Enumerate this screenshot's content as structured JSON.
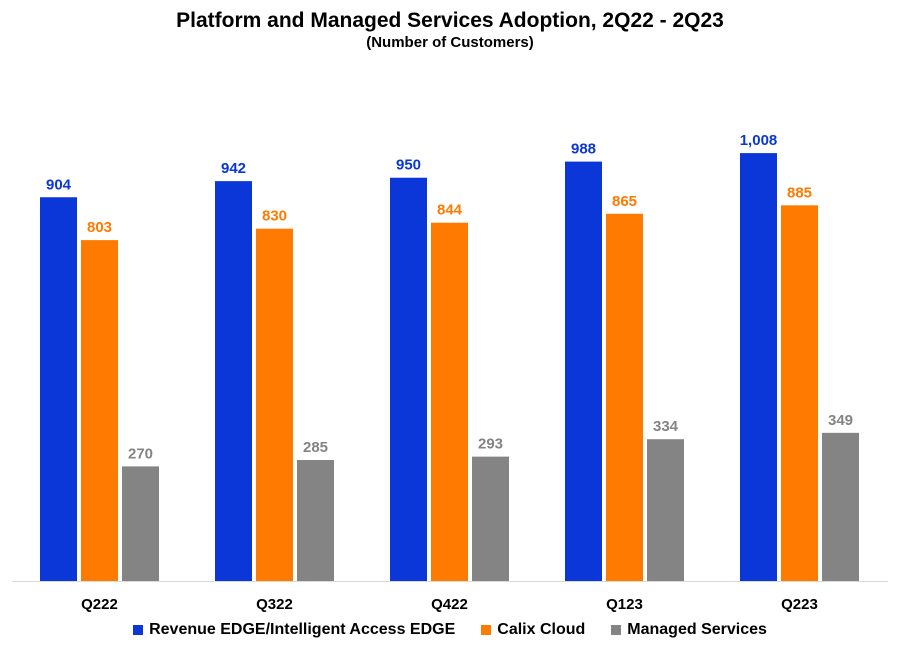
{
  "chart_data": {
    "type": "bar",
    "title": "Platform and Managed Services Adoption, 2Q22 - 2Q23",
    "subtitle": "(Number of Customers)",
    "categories": [
      "Q222",
      "Q322",
      "Q422",
      "Q123",
      "Q223"
    ],
    "series": [
      {
        "name": "Revenue EDGE/Intelligent Access EDGE",
        "color": "#0B36D8",
        "values": [
          904,
          942,
          950,
          988,
          1008
        ],
        "labels": [
          "904",
          "942",
          "950",
          "988",
          "1,008"
        ]
      },
      {
        "name": "Calix Cloud",
        "color": "#FF7A00",
        "values": [
          803,
          830,
          844,
          865,
          885
        ],
        "labels": [
          "803",
          "830",
          "844",
          "865",
          "885"
        ]
      },
      {
        "name": "Managed Services",
        "color": "#848484",
        "values": [
          270,
          285,
          293,
          334,
          349
        ],
        "labels": [
          "270",
          "285",
          "293",
          "334",
          "349"
        ]
      }
    ],
    "xlabel": "",
    "ylabel": "",
    "ylim": [
      0,
      1100
    ],
    "grid": false,
    "legend_position": "bottom"
  }
}
